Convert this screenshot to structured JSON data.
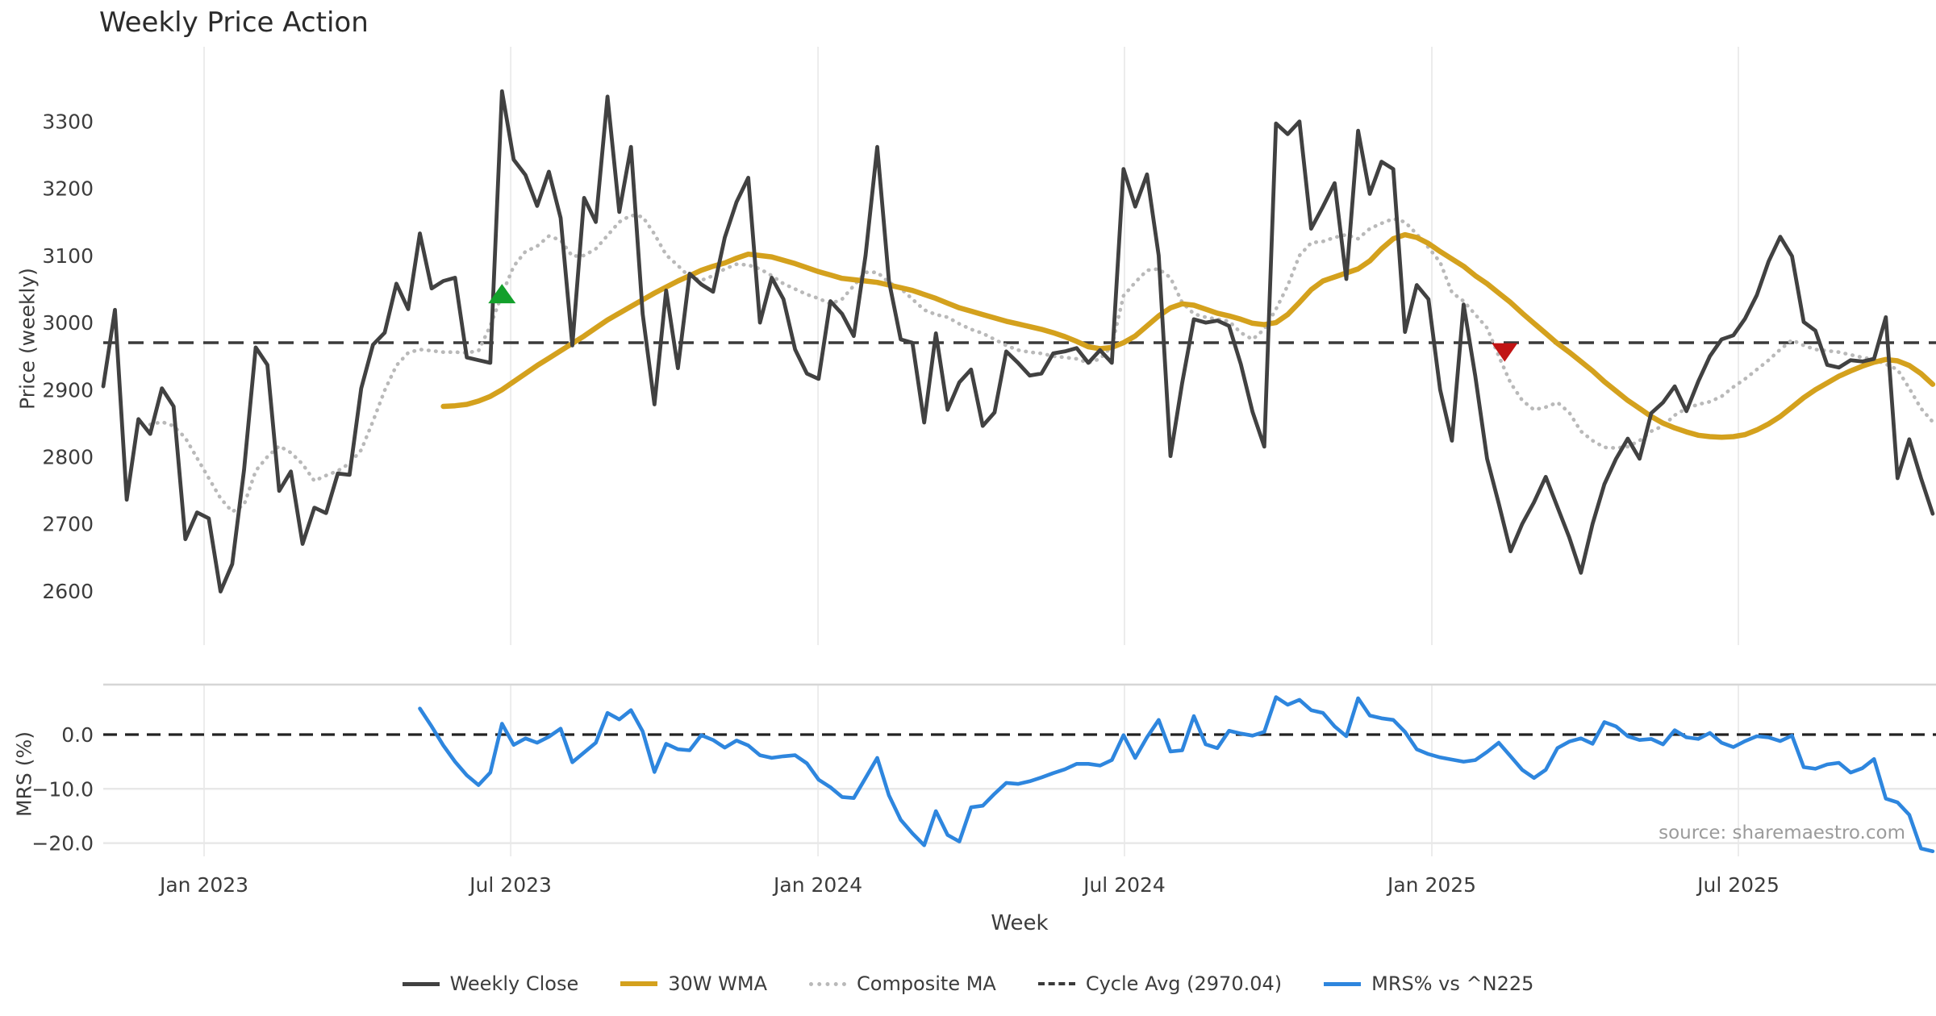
{
  "title": "Weekly Price Action",
  "source_note": "source: sharemaestro.com",
  "colors": {
    "close": "#414141",
    "wma": "#d4a11d",
    "composite": "#b9b9b9",
    "cycle": "#3a3a3a",
    "mrs": "#2e86de",
    "buy": "#13a02b",
    "sell": "#c11414",
    "grid": "#ececec",
    "sub_grid": "#e8e8e8",
    "spine": "#d6d6d6",
    "tick_text": "#3c3c3c",
    "zero_dash": "#222222"
  },
  "axes": {
    "x": {
      "label": "Week",
      "ticks": [
        {
          "label": "Jan 2023",
          "week": 8.6
        },
        {
          "label": "Jul 2023",
          "week": 34.74
        },
        {
          "label": "Jan 2024",
          "week": 60.95
        },
        {
          "label": "Jul 2024",
          "week": 87.08
        },
        {
          "label": "Jan 2025",
          "week": 113.29
        },
        {
          "label": "Jul 2025",
          "week": 139.43
        }
      ]
    },
    "y_main": {
      "label": "Price (weekly)",
      "ticks": [
        2600,
        2700,
        2800,
        2900,
        3000,
        3100,
        3200,
        3300
      ]
    },
    "y_sub": {
      "label": "MRS (%)",
      "ticks": [
        {
          "label": "0.0",
          "value": 0
        },
        {
          "label": "−10.0",
          "value": -10
        },
        {
          "label": "−20.0",
          "value": -20
        }
      ]
    }
  },
  "legend": {
    "items": [
      {
        "label": "Weekly Close",
        "style": "solid",
        "color_key": "close",
        "weight": 5
      },
      {
        "label": "30W WMA",
        "style": "solid",
        "color_key": "wma",
        "weight": 6
      },
      {
        "label": "Composite MA",
        "style": "dotted",
        "color_key": "composite",
        "weight": 5
      },
      {
        "label": "Cycle Avg (2970.04)",
        "style": "dashed",
        "color_key": "cycle",
        "weight": 4
      },
      {
        "label": "MRS% vs ^N225",
        "style": "solid",
        "color_key": "mrs",
        "weight": 5
      }
    ]
  },
  "chart_data": [
    {
      "type": "line",
      "panel": "main",
      "title": "Weekly Price Action",
      "x_unit": "weeks since start (late Oct 2022), 1 point per week",
      "ylabel": "Price (weekly)",
      "ylim": [
        2513,
        3409
      ],
      "grid": "vertical-only",
      "cycle_avg": 2970.04,
      "series": [
        {
          "name": "Weekly Close",
          "start_week": 0,
          "values": [
            2905,
            3019,
            2736,
            2856,
            2834,
            2902,
            2875,
            2677,
            2717,
            2708,
            2599,
            2640,
            2780,
            2963,
            2937,
            2749,
            2778,
            2670,
            2724,
            2716,
            2775,
            2773,
            2902,
            2967,
            2985,
            3058,
            3020,
            3133,
            3051,
            3062,
            3067,
            2948,
            2944,
            2940,
            3345,
            3243,
            3220,
            3174,
            3225,
            3156,
            2966,
            3186,
            3150,
            3337,
            3165,
            3262,
            3013,
            2878,
            3048,
            2932,
            3073,
            3057,
            3046,
            3127,
            3180,
            3216,
            3000,
            3067,
            3035,
            2960,
            2924,
            2916,
            3032,
            3013,
            2980,
            3100,
            3262,
            3062,
            2975,
            2970,
            2851,
            2984,
            2870,
            2911,
            2930,
            2846,
            2866,
            2957,
            2940,
            2921,
            2924,
            2954,
            2957,
            2962,
            2940,
            2959,
            2940,
            3229,
            3173,
            3221,
            3100,
            2801,
            2910,
            3005,
            3000,
            3003,
            2995,
            2938,
            2867,
            2815,
            3297,
            3281,
            3300,
            3140,
            3173,
            3208,
            3065,
            3286,
            3192,
            3240,
            3229,
            2986,
            3056,
            3035,
            2900,
            2824,
            3027,
            2920,
            2797,
            2730,
            2659,
            2700,
            2732,
            2770,
            2725,
            2680,
            2627,
            2700,
            2759,
            2797,
            2827,
            2797,
            2865,
            2881,
            2905,
            2868,
            2912,
            2950,
            2975,
            2981,
            3006,
            3041,
            3091,
            3128,
            3099,
            3001,
            2988,
            2937,
            2933,
            2944,
            2942,
            2946,
            3008,
            2768,
            2826,
            2768,
            2715
          ]
        },
        {
          "name": "30W WMA",
          "start_week": 29,
          "values": [
            2875,
            2876,
            2878,
            2883,
            2890,
            2900,
            2912,
            2924,
            2936,
            2947,
            2958,
            2969,
            2980,
            2992,
            3004,
            3014,
            3024,
            3034,
            3044,
            3053,
            3062,
            3070,
            3078,
            3084,
            3089,
            3096,
            3102,
            3100,
            3098,
            3093,
            3088,
            3082,
            3076,
            3071,
            3066,
            3064,
            3062,
            3060,
            3056,
            3052,
            3048,
            3042,
            3036,
            3029,
            3022,
            3017,
            3012,
            3007,
            3002,
            2998,
            2994,
            2990,
            2985,
            2979,
            2972,
            2964,
            2961,
            2963,
            2970,
            2980,
            2995,
            3010,
            3022,
            3028,
            3026,
            3020,
            3014,
            3010,
            3005,
            2999,
            2997,
            3000,
            3012,
            3030,
            3049,
            3062,
            3068,
            3074,
            3080,
            3092,
            3110,
            3125,
            3131,
            3127,
            3118,
            3106,
            3095,
            3084,
            3070,
            3058,
            3044,
            3030,
            3014,
            2999,
            2984,
            2969,
            2956,
            2942,
            2928,
            2912,
            2898,
            2884,
            2872,
            2860,
            2850,
            2843,
            2837,
            2832,
            2830,
            2829,
            2830,
            2833,
            2840,
            2849,
            2860,
            2874,
            2888,
            2900,
            2910,
            2920,
            2928,
            2935,
            2941,
            2945,
            2943,
            2936,
            2924,
            2908
          ]
        },
        {
          "name": "Composite MA",
          "start_week": 4,
          "values": [
            2848,
            2852,
            2846,
            2828,
            2798,
            2768,
            2738,
            2718,
            2728,
            2779,
            2800,
            2816,
            2806,
            2789,
            2764,
            2772,
            2779,
            2790,
            2810,
            2853,
            2899,
            2936,
            2955,
            2960,
            2958,
            2956,
            2956,
            2955,
            2958,
            2995,
            3042,
            3084,
            3106,
            3114,
            3129,
            3123,
            3099,
            3100,
            3110,
            3130,
            3150,
            3160,
            3158,
            3132,
            3101,
            3085,
            3068,
            3063,
            3070,
            3080,
            3087,
            3086,
            3080,
            3070,
            3058,
            3050,
            3042,
            3036,
            3028,
            3035,
            3055,
            3075,
            3075,
            3060,
            3051,
            3035,
            3019,
            3012,
            3008,
            2998,
            2990,
            2984,
            2975,
            2966,
            2959,
            2956,
            2954,
            2950,
            2948,
            2946,
            2940,
            2946,
            2965,
            3040,
            3060,
            3078,
            3080,
            3067,
            3030,
            3013,
            3008,
            3005,
            3002,
            2985,
            2975,
            2990,
            3020,
            3055,
            3100,
            3119,
            3121,
            3127,
            3131,
            3125,
            3140,
            3148,
            3155,
            3150,
            3132,
            3112,
            3090,
            3045,
            3032,
            3012,
            2992,
            2950,
            2910,
            2884,
            2870,
            2874,
            2881,
            2866,
            2838,
            2824,
            2814,
            2813,
            2815,
            2824,
            2838,
            2846,
            2862,
            2872,
            2878,
            2882,
            2890,
            2904,
            2916,
            2930,
            2944,
            2960,
            2974,
            2966,
            2960,
            2958,
            2956,
            2952,
            2948,
            2945,
            2938,
            2930,
            2902,
            2872,
            2852
          ]
        },
        {
          "name": "Cycle Avg",
          "constant": 2970.04
        }
      ],
      "markers": [
        {
          "kind": "buy-triangle",
          "week": 34,
          "price": 3042
        },
        {
          "kind": "sell-triangle",
          "week": 119.5,
          "price": 2956
        }
      ]
    },
    {
      "type": "line",
      "panel": "sub",
      "ylabel": "MRS (%)",
      "ylim": [
        -24.5,
        9.2
      ],
      "zero_line": 0,
      "series": [
        {
          "name": "MRS% vs ^N225",
          "start_week": 27,
          "values": [
            4.8,
            1.5,
            -2.0,
            -5.0,
            -7.5,
            -9.3,
            -7.0,
            2.0,
            -1.9,
            -0.7,
            -1.5,
            -0.4,
            1.1,
            -5.1,
            -3.3,
            -1.5,
            4.0,
            2.8,
            4.5,
            0.6,
            -6.9,
            -1.7,
            -2.7,
            -2.9,
            -0.1,
            -1.0,
            -2.4,
            -1.1,
            -2.0,
            -3.8,
            -4.3,
            -4.0,
            -3.8,
            -5.3,
            -8.3,
            -9.7,
            -11.5,
            -11.7,
            -8.0,
            -4.3,
            -11.2,
            -15.7,
            -18.2,
            -20.4,
            -14.1,
            -18.5,
            -19.7,
            -13.4,
            -13.1,
            -10.9,
            -8.9,
            -9.1,
            -8.6,
            -7.9,
            -7.1,
            -6.4,
            -5.4,
            -5.4,
            -5.7,
            -4.7,
            -0.1,
            -4.3,
            -0.5,
            2.7,
            -3.1,
            -2.9,
            3.4,
            -1.8,
            -2.5,
            0.7,
            0.2,
            -0.2,
            0.5,
            6.9,
            5.5,
            6.4,
            4.5,
            4.0,
            1.5,
            -0.3,
            6.7,
            3.5,
            3.0,
            2.7,
            0.5,
            -2.7,
            -3.6,
            -4.2,
            -4.6,
            -5.0,
            -4.7,
            -3.2,
            -1.5,
            -4.0,
            -6.5,
            -8.0,
            -6.5,
            -2.5,
            -1.3,
            -0.7,
            -1.7,
            2.3,
            1.5,
            -0.3,
            -1.0,
            -0.8,
            -1.8,
            0.8,
            -0.5,
            -0.8,
            0.3,
            -1.5,
            -2.3,
            -1.2,
            -0.3,
            -0.5,
            -1.2,
            -0.2,
            -6.0,
            -6.3,
            -5.5,
            -5.2,
            -7.0,
            -6.2,
            -4.5,
            -11.8,
            -12.5,
            -14.8,
            -21.0,
            -21.5
          ]
        }
      ]
    }
  ]
}
